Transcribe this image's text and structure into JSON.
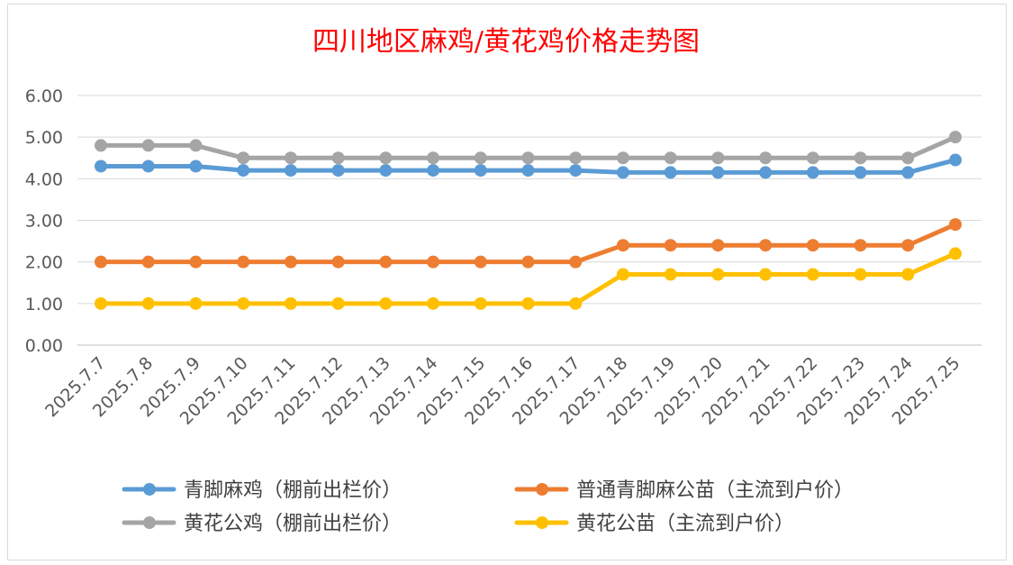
{
  "chart_data": {
    "type": "line",
    "title": "四川地区麻鸡/黄花鸡价格走势图",
    "xlabel": "",
    "ylabel": "",
    "ylim": [
      0,
      6
    ],
    "yticks": [
      "0.00",
      "1.00",
      "2.00",
      "3.00",
      "4.00",
      "5.00",
      "6.00"
    ],
    "grid": true,
    "legend_position": "bottom",
    "categories": [
      "2025.7.7",
      "2025.7.8",
      "2025.7.9",
      "2025.7.10",
      "2025.7.11",
      "2025.7.12",
      "2025.7.13",
      "2025.7.14",
      "2025.7.15",
      "2025.7.16",
      "2025.7.17",
      "2025.7.18",
      "2025.7.19",
      "2025.7.20",
      "2025.7.21",
      "2025.7.22",
      "2025.7.23",
      "2025.7.24",
      "2025.7.25"
    ],
    "series": [
      {
        "name": "青脚麻鸡（棚前出栏价）",
        "color": "#5b9bd5",
        "values": [
          4.3,
          4.3,
          4.3,
          4.2,
          4.2,
          4.2,
          4.2,
          4.2,
          4.2,
          4.2,
          4.2,
          4.15,
          4.15,
          4.15,
          4.15,
          4.15,
          4.15,
          4.15,
          4.45
        ]
      },
      {
        "name": "普通青脚麻公苗（主流到户价）",
        "color": "#ed7d31",
        "values": [
          2.0,
          2.0,
          2.0,
          2.0,
          2.0,
          2.0,
          2.0,
          2.0,
          2.0,
          2.0,
          2.0,
          2.4,
          2.4,
          2.4,
          2.4,
          2.4,
          2.4,
          2.4,
          2.9
        ]
      },
      {
        "name": "黄花公鸡（棚前出栏价）",
        "color": "#a5a5a5",
        "values": [
          4.8,
          4.8,
          4.8,
          4.5,
          4.5,
          4.5,
          4.5,
          4.5,
          4.5,
          4.5,
          4.5,
          4.5,
          4.5,
          4.5,
          4.5,
          4.5,
          4.5,
          4.5,
          5.0
        ]
      },
      {
        "name": "黄花公苗（主流到户价）",
        "color": "#ffc000",
        "values": [
          1.0,
          1.0,
          1.0,
          1.0,
          1.0,
          1.0,
          1.0,
          1.0,
          1.0,
          1.0,
          1.0,
          1.7,
          1.7,
          1.7,
          1.7,
          1.7,
          1.7,
          1.7,
          2.2
        ]
      }
    ],
    "title_color": "#ff0000"
  }
}
